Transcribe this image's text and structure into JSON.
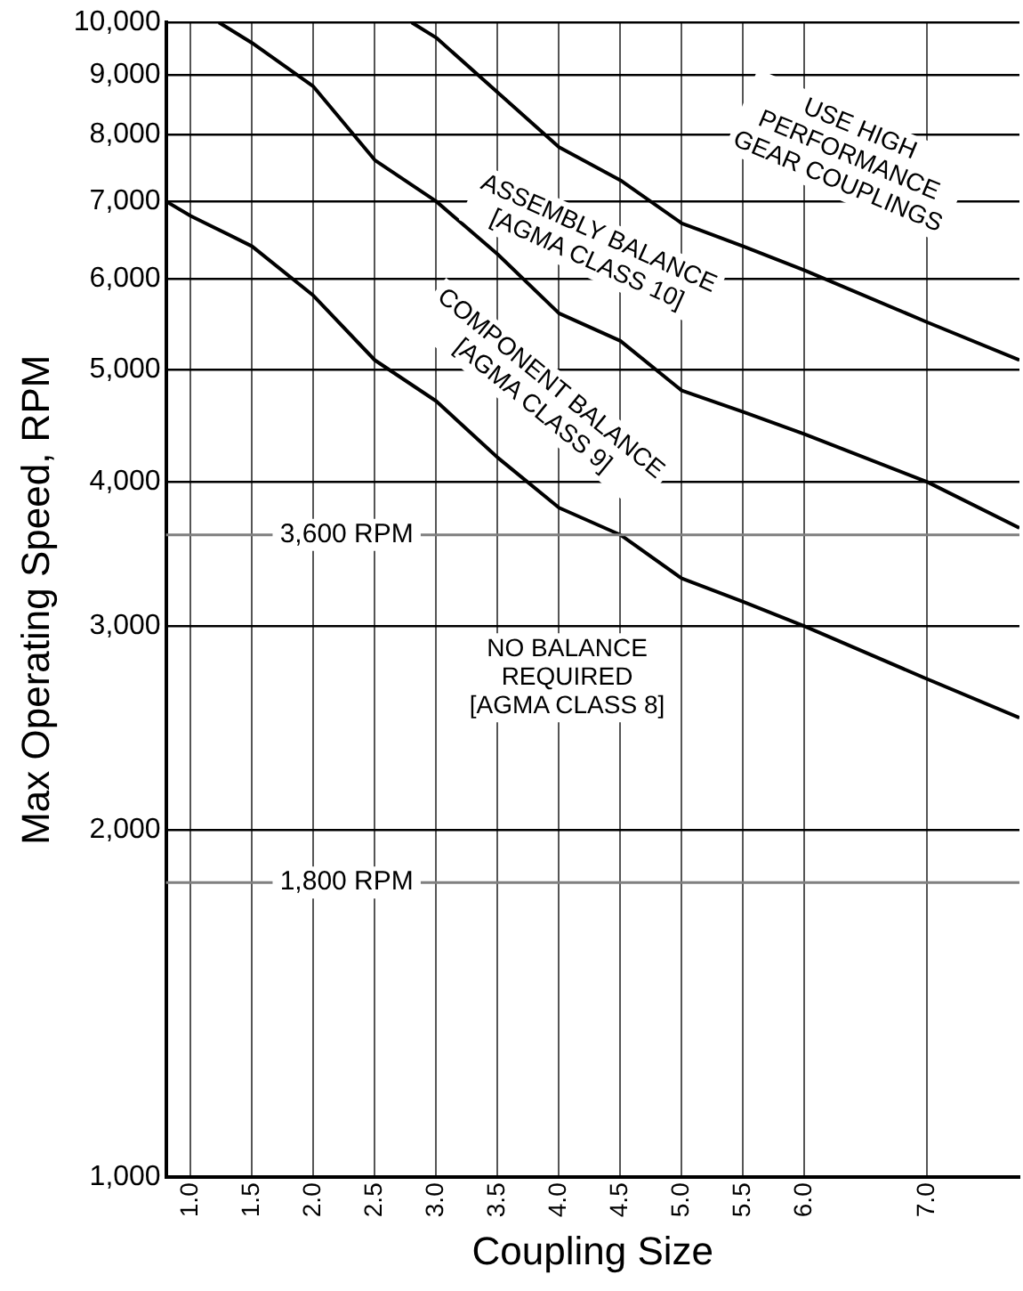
{
  "chart_data": {
    "type": "line",
    "xlabel": "Coupling Size",
    "ylabel": "Max Operating Speed, RPM",
    "log": "y",
    "grid": true,
    "legend": false,
    "marker": "none",
    "line_style": "solid",
    "xlim": [
      0.8,
      7.75
    ],
    "xticks": [
      {
        "value": 1,
        "label": "1.0"
      },
      1.5,
      {
        "value": 2,
        "label": "2.0"
      },
      2.5,
      {
        "value": 3,
        "label": "3.0"
      },
      3.5,
      {
        "value": 4,
        "label": "4.0"
      },
      4.5,
      {
        "value": 5,
        "label": "5.0"
      },
      5.5,
      {
        "value": 6,
        "label": "6.0"
      },
      {
        "value": 7,
        "label": "7.0"
      }
    ],
    "ylim": [
      1000,
      10000
    ],
    "yticks": [
      {
        "value": 1000,
        "label": "1,000"
      },
      {
        "value": 2000,
        "label": "2,000"
      },
      {
        "value": 3000,
        "label": "3,000"
      },
      {
        "value": 4000,
        "label": "4,000"
      },
      {
        "value": 5000,
        "label": "5,000"
      },
      {
        "value": 6000,
        "label": "6,000"
      },
      {
        "value": 7000,
        "label": "7,000"
      },
      {
        "value": 8000,
        "label": "8,000"
      },
      {
        "value": 9000,
        "label": "9,000"
      },
      {
        "value": 10000,
        "label": "10,000"
      }
    ],
    "series": [
      {
        "color": "#000000",
        "x": [
          0.8,
          1,
          1.5,
          2,
          2.5,
          3,
          3.5,
          4,
          4.5,
          5,
          5.5,
          6,
          7,
          7.75
        ],
        "values": [
          7000,
          6800,
          6400,
          5800,
          5100,
          4700,
          4200,
          3800,
          3600,
          3300,
          3150,
          3000,
          2700,
          2500
        ]
      },
      {
        "color": "#000000",
        "x": [
          1.23,
          1.5,
          2,
          2.5,
          3,
          3.5,
          4,
          4.5,
          5,
          5.5,
          6,
          7,
          7.75
        ],
        "values": [
          10000,
          9600,
          8800,
          7600,
          7000,
          6300,
          5600,
          5300,
          4800,
          4600,
          4400,
          4000,
          3650
        ]
      },
      {
        "color": "#000000",
        "x": [
          2.8,
          3,
          3.5,
          4,
          4.5,
          5,
          5.5,
          6,
          7,
          7.75
        ],
        "values": [
          10000,
          9700,
          8700,
          7800,
          7300,
          6700,
          6400,
          6100,
          5500,
          5100
        ]
      }
    ],
    "ref_lines": [
      {
        "axis": "y",
        "value": 3600,
        "label": "3,600 RPM",
        "color": "#808080"
      },
      {
        "axis": "y",
        "value": 1800,
        "label": "1,800 RPM",
        "color": "#808080"
      }
    ],
    "annotations": [
      "NO BALANCE\nREQUIRED\n[AGMA CLASS 8]",
      "COMPONENT BALANCE\n[AGMA CLASS 9]",
      "ASSEMBLY BALANCE\n[AGMA CLASS 10]",
      "USE HIGH\nPERFORMANCE\nGEAR COUPLINGS"
    ]
  }
}
